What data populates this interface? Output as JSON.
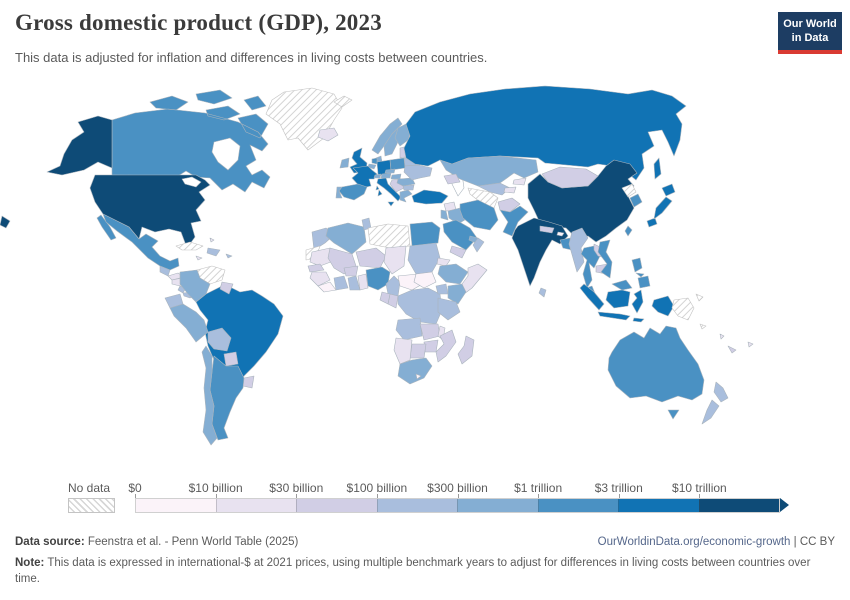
{
  "header": {
    "title": "Gross domestic product (GDP), 2023",
    "subtitle": "This data is adjusted for inflation and differences in living costs between countries.",
    "logo_line1": "Our World",
    "logo_line2": "in Data",
    "logo_bg": "#1d3d63",
    "logo_bar": "#d93a32"
  },
  "legend": {
    "no_data_label": "No data",
    "tick_labels": [
      "$0",
      "$10 billion",
      "$30 billion",
      "$100 billion",
      "$300 billion",
      "$1 trillion",
      "$3 trillion",
      "$10 trillion"
    ],
    "bin_colors": [
      "#fbf3f9",
      "#e8e2f0",
      "#d1cee5",
      "#a9bedd",
      "#84aed3",
      "#4a91c3",
      "#1173b4",
      "#0e4b77"
    ],
    "no_data_stroke": "#c2c2c2",
    "border_color": "#aab4bd"
  },
  "footer": {
    "source_label": "Data source:",
    "source_text": " Feenstra et al. - Penn World Table (2025)",
    "link": "OurWorldinData.org/economic-growth",
    "divider": " | ",
    "license": "CC BY",
    "note_label": "Note:",
    "note_text": " This data is expressed in international-$ at 2021 prices, using multiple benchmark years to adjust for differences in living costs between countries over time."
  },
  "chart_data": {
    "type": "choropleth_map",
    "title": "Gross domestic product (GDP), 2023",
    "unit": "international-$ at 2021 prices",
    "bin_ranges": [
      "$0-$10 billion",
      "$10-$30 billion",
      "$30-$100 billion",
      "$100-$300 billion",
      "$300 billion-$1 trillion",
      "$1-$3 trillion",
      "$3-$10 trillion",
      "over $10 trillion"
    ],
    "countries": {
      "usa": {
        "name": "United States",
        "bin": 7
      },
      "canada": {
        "name": "Canada",
        "bin": 5
      },
      "greenland": {
        "name": "Greenland",
        "bin": "no-data"
      },
      "mexico": {
        "name": "Mexico",
        "bin": 5
      },
      "guatemala": {
        "name": "Guatemala",
        "bin": 3
      },
      "honduras": {
        "name": "Honduras",
        "bin": 1
      },
      "nicaragua": {
        "name": "Nicaragua",
        "bin": 1
      },
      "costa-rica": {
        "name": "Costa Rica",
        "bin": 3
      },
      "panama": {
        "name": "Panama",
        "bin": 3
      },
      "cuba": {
        "name": "Cuba",
        "bin": "no-data"
      },
      "dominican-republic": {
        "name": "Dominican Republic",
        "bin": 3
      },
      "jamaica": {
        "name": "Jamaica",
        "bin": 1
      },
      "bahamas": {
        "name": "Bahamas",
        "bin": 1
      },
      "puerto-rico": {
        "name": "Puerto Rico",
        "bin": 3
      },
      "venezuela": {
        "name": "Venezuela",
        "bin": "no-data"
      },
      "colombia": {
        "name": "Colombia",
        "bin": 4
      },
      "guyana": {
        "name": "Guyana",
        "bin": 2
      },
      "ecuador": {
        "name": "Ecuador",
        "bin": 3
      },
      "peru": {
        "name": "Peru",
        "bin": 4
      },
      "brazil": {
        "name": "Brazil",
        "bin": 6
      },
      "bolivia": {
        "name": "Bolivia",
        "bin": 3
      },
      "paraguay": {
        "name": "Paraguay",
        "bin": 2
      },
      "uruguay": {
        "name": "Uruguay",
        "bin": 2
      },
      "argentina": {
        "name": "Argentina",
        "bin": 5
      },
      "chile": {
        "name": "Chile",
        "bin": 4
      },
      "iceland": {
        "name": "Iceland",
        "bin": 1
      },
      "svalbard": {
        "name": "Svalbard",
        "bin": "no-data"
      },
      "uk": {
        "name": "United Kingdom",
        "bin": 6
      },
      "ireland": {
        "name": "Ireland",
        "bin": 4
      },
      "norway": {
        "name": "Norway",
        "bin": 4
      },
      "sweden": {
        "name": "Sweden",
        "bin": 4
      },
      "finland": {
        "name": "Finland",
        "bin": 4
      },
      "denmark": {
        "name": "Denmark",
        "bin": 4
      },
      "baltics": {
        "name": "Baltic states",
        "bin": 2
      },
      "belarus": {
        "name": "Belarus",
        "bin": 3
      },
      "poland": {
        "name": "Poland",
        "bin": 5
      },
      "germany": {
        "name": "Germany",
        "bin": 6
      },
      "netherlands": {
        "name": "Netherlands",
        "bin": 5
      },
      "belgium": {
        "name": "Belgium",
        "bin": 4
      },
      "france": {
        "name": "France",
        "bin": 6
      },
      "spain": {
        "name": "Spain",
        "bin": 5
      },
      "portugal": {
        "name": "Portugal",
        "bin": 4
      },
      "switzerland": {
        "name": "Switzerland",
        "bin": 4
      },
      "austria": {
        "name": "Austria",
        "bin": 4
      },
      "czechia": {
        "name": "Czechia",
        "bin": 4
      },
      "hungary": {
        "name": "Hungary",
        "bin": 4
      },
      "italy": {
        "name": "Italy",
        "bin": 6
      },
      "balkans": {
        "name": "Western Balkans",
        "bin": 2
      },
      "greece": {
        "name": "Greece",
        "bin": 4
      },
      "bulgaria": {
        "name": "Bulgaria",
        "bin": 3
      },
      "romania": {
        "name": "Romania",
        "bin": 4
      },
      "ukraine": {
        "name": "Ukraine",
        "bin": 3
      },
      "russia": {
        "name": "Russia",
        "bin": 6
      },
      "kazakhstan": {
        "name": "Kazakhstan",
        "bin": 4
      },
      "uzbekistan": {
        "name": "Uzbekistan",
        "bin": 3
      },
      "turkmenistan": {
        "name": "Turkmenistan",
        "bin": "no-data"
      },
      "kyrgyzstan": {
        "name": "Kyrgyzstan",
        "bin": 1
      },
      "tajikistan": {
        "name": "Tajikistan",
        "bin": 1
      },
      "caucasus": {
        "name": "Caucasus states",
        "bin": 2
      },
      "turkey": {
        "name": "Turkey",
        "bin": 6
      },
      "syria": {
        "name": "Syria",
        "bin": 1
      },
      "iraq": {
        "name": "Iraq",
        "bin": 4
      },
      "israel-jordan": {
        "name": "Israel & Jordan",
        "bin": 4
      },
      "iran": {
        "name": "Iran",
        "bin": 5
      },
      "afghanistan": {
        "name": "Afghanistan",
        "bin": 2
      },
      "pakistan": {
        "name": "Pakistan",
        "bin": 5
      },
      "saudi-arabia": {
        "name": "Saudi Arabia",
        "bin": 5
      },
      "uae": {
        "name": "United Arab Emirates",
        "bin": 4
      },
      "oman": {
        "name": "Oman",
        "bin": 3
      },
      "yemen": {
        "name": "Yemen",
        "bin": 2
      },
      "morocco": {
        "name": "Morocco",
        "bin": 3
      },
      "western-sahara": {
        "name": "Western Sahara",
        "bin": "no-data"
      },
      "algeria": {
        "name": "Algeria",
        "bin": 4
      },
      "tunisia": {
        "name": "Tunisia",
        "bin": 3
      },
      "libya": {
        "name": "Libya",
        "bin": "no-data"
      },
      "egypt": {
        "name": "Egypt",
        "bin": 5
      },
      "mauritania": {
        "name": "Mauritania",
        "bin": 1
      },
      "mali": {
        "name": "Mali",
        "bin": 2
      },
      "niger": {
        "name": "Niger",
        "bin": 2
      },
      "chad": {
        "name": "Chad",
        "bin": 1
      },
      "sudan": {
        "name": "Sudan",
        "bin": 3
      },
      "eritrea": {
        "name": "Eritrea",
        "bin": 1
      },
      "ethiopia": {
        "name": "Ethiopia",
        "bin": 4
      },
      "somalia": {
        "name": "Somalia",
        "bin": 1
      },
      "senegal": {
        "name": "Senegal",
        "bin": 2
      },
      "guinea": {
        "name": "Guinea",
        "bin": 1
      },
      "sierra-leone": {
        "name": "Sierra Leone & Liberia",
        "bin": 0
      },
      "ivory-coast": {
        "name": "Cote d'Ivoire",
        "bin": 3
      },
      "burkina-faso": {
        "name": "Burkina Faso",
        "bin": 2
      },
      "ghana": {
        "name": "Ghana",
        "bin": 3
      },
      "togo-benin": {
        "name": "Togo & Benin",
        "bin": 1
      },
      "nigeria": {
        "name": "Nigeria",
        "bin": 5
      },
      "cameroon": {
        "name": "Cameroon",
        "bin": 3
      },
      "central-african-republic": {
        "name": "Central African Republic",
        "bin": 0
      },
      "south-sudan": {
        "name": "South Sudan",
        "bin": 0
      },
      "drc": {
        "name": "Democratic Republic of Congo",
        "bin": 3
      },
      "congo": {
        "name": "Congo",
        "bin": 2
      },
      "gabon": {
        "name": "Gabon",
        "bin": 2
      },
      "uganda": {
        "name": "Uganda",
        "bin": 3
      },
      "kenya": {
        "name": "Kenya",
        "bin": 4
      },
      "tanzania": {
        "name": "Tanzania",
        "bin": 3
      },
      "angola": {
        "name": "Angola",
        "bin": 3
      },
      "zambia": {
        "name": "Zambia",
        "bin": 2
      },
      "malawi": {
        "name": "Malawi",
        "bin": 1
      },
      "mozambique": {
        "name": "Mozambique",
        "bin": 2
      },
      "zimbabwe": {
        "name": "Zimbabwe",
        "bin": 2
      },
      "botswana": {
        "name": "Botswana",
        "bin": 2
      },
      "namibia": {
        "name": "Namibia",
        "bin": 1
      },
      "south-africa": {
        "name": "South Africa",
        "bin": 4
      },
      "lesotho": {
        "name": "Lesotho",
        "bin": 0
      },
      "madagascar": {
        "name": "Madagascar",
        "bin": 2
      },
      "india": {
        "name": "India",
        "bin": 7
      },
      "nepal": {
        "name": "Nepal",
        "bin": 2
      },
      "bhutan": {
        "name": "Bhutan",
        "bin": 0
      },
      "bangladesh": {
        "name": "Bangladesh",
        "bin": 5
      },
      "sri-lanka": {
        "name": "Sri Lanka",
        "bin": 3
      },
      "myanmar": {
        "name": "Myanmar",
        "bin": 3
      },
      "thailand": {
        "name": "Thailand",
        "bin": 5
      },
      "laos": {
        "name": "Laos",
        "bin": 2
      },
      "cambodia": {
        "name": "Cambodia",
        "bin": 2
      },
      "vietnam": {
        "name": "Vietnam",
        "bin": 5
      },
      "malaysia": {
        "name": "Malaysia",
        "bin": 5
      },
      "indonesia": {
        "name": "Indonesia",
        "bin": 6
      },
      "papua-new-guinea": {
        "name": "Papua New Guinea",
        "bin": "no-data"
      },
      "philippines": {
        "name": "Philippines",
        "bin": 5
      },
      "taiwan": {
        "name": "Taiwan",
        "bin": 5
      },
      "china": {
        "name": "China",
        "bin": 7
      },
      "mongolia": {
        "name": "Mongolia",
        "bin": 2
      },
      "north-korea": {
        "name": "North Korea",
        "bin": "no-data"
      },
      "south-korea": {
        "name": "South Korea",
        "bin": 5
      },
      "japan": {
        "name": "Japan",
        "bin": 6
      },
      "australia": {
        "name": "Australia",
        "bin": 5
      },
      "new-zealand": {
        "name": "New Zealand",
        "bin": 3
      },
      "new-caledonia": {
        "name": "New Caledonia",
        "bin": 2
      },
      "fiji": {
        "name": "Fiji",
        "bin": 1
      },
      "solomon-islands": {
        "name": "Solomon Islands",
        "bin": "no-data"
      },
      "vanuatu": {
        "name": "Vanuatu",
        "bin": 1
      }
    }
  }
}
